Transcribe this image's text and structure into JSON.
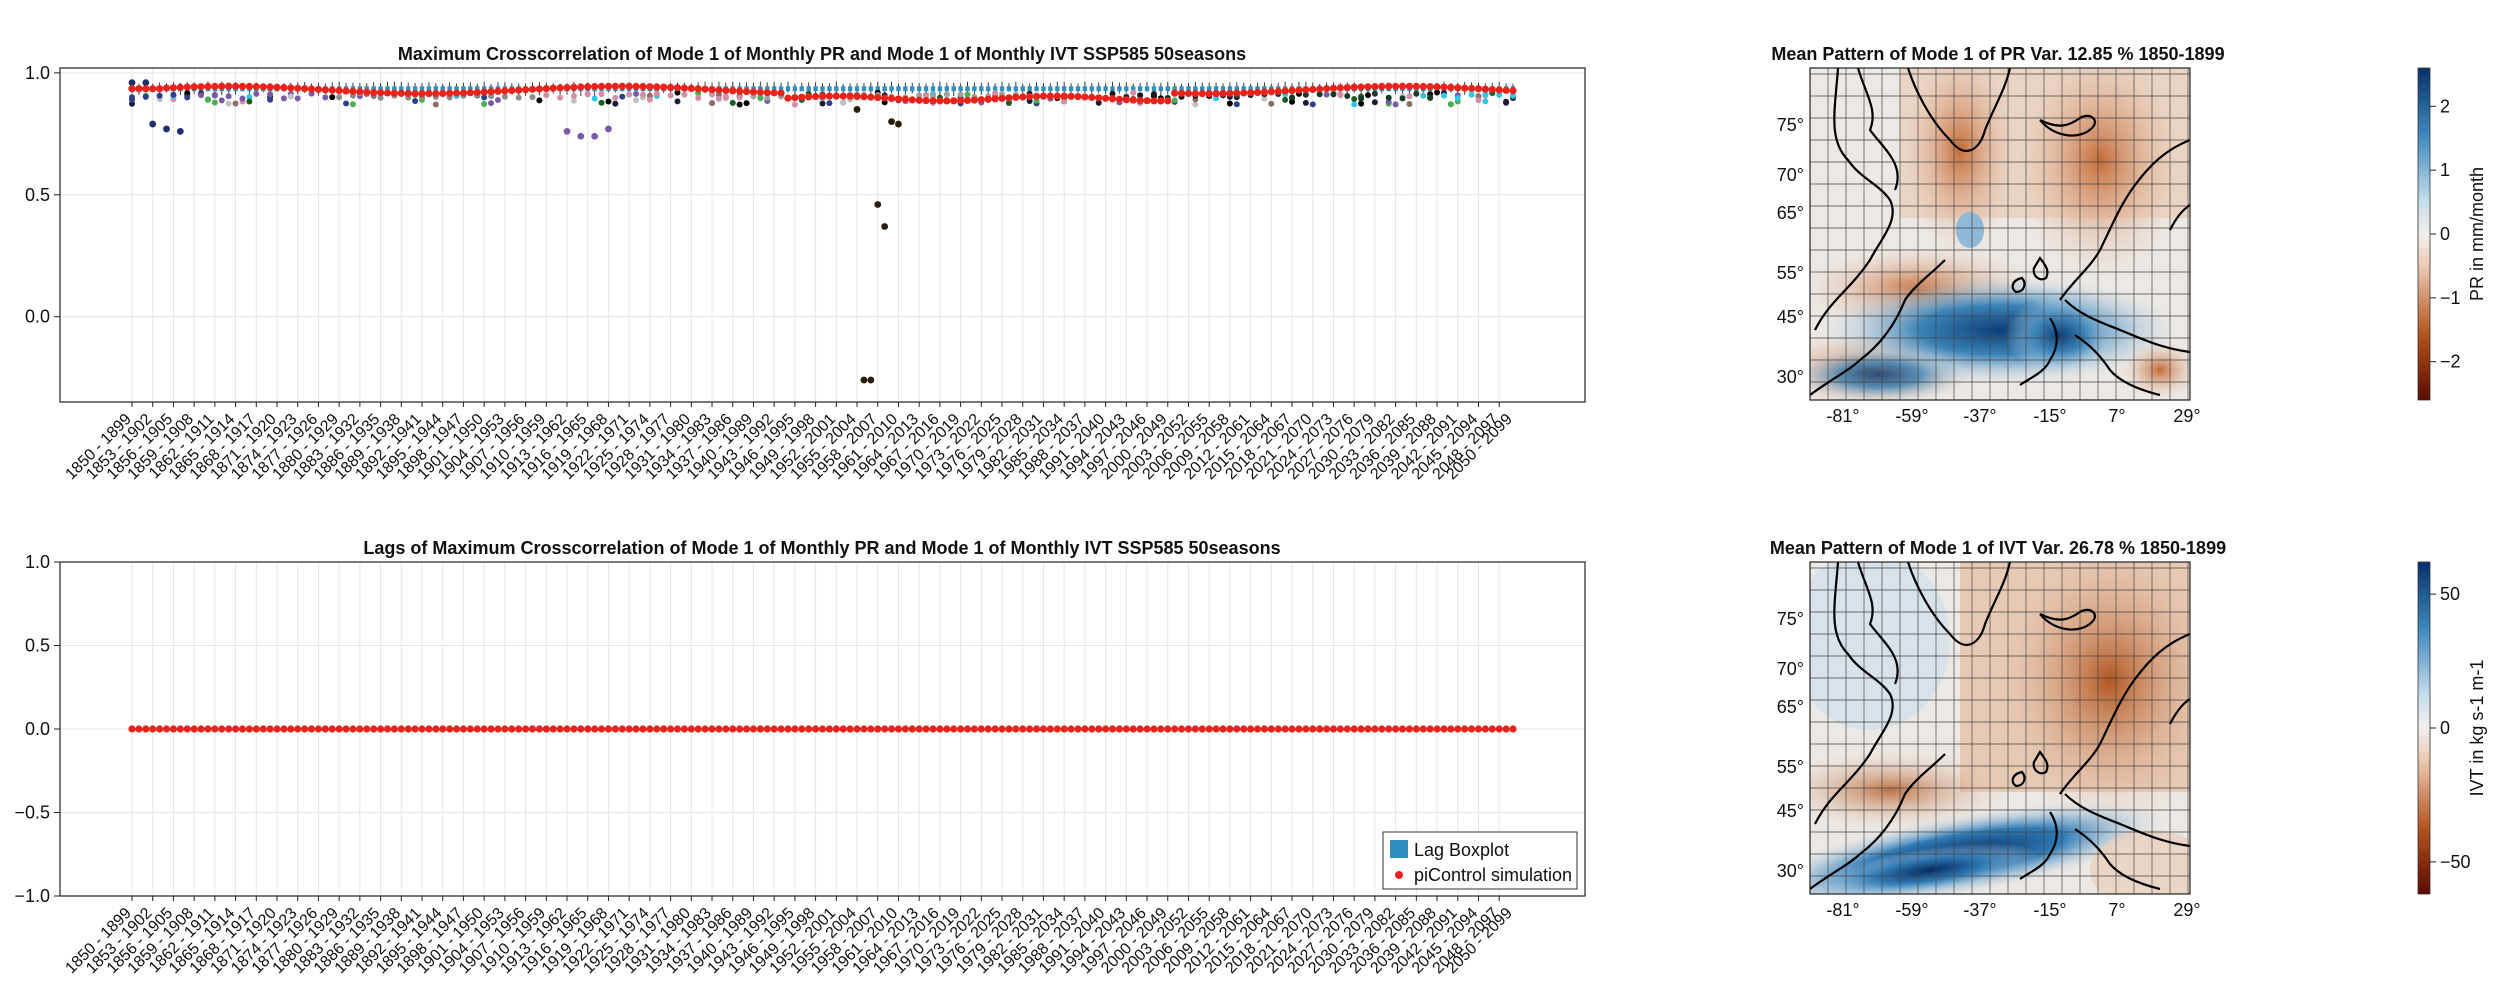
{
  "chart_data": [
    {
      "type": "scatter",
      "title": "Maximum  Crosscorrelation of Monthly PR and Mode 1 of Monthly IVT SSP585 50seasons",
      "title_full": "Maximum  Crosscorrelation of Mode 1 of Monthly PR and Mode 1 of Monthly IVT SSP585 50seasons",
      "ylim": [
        -0.35,
        1.02
      ],
      "yticks": [
        "1.0",
        "0.5",
        "0.0"
      ],
      "ytick_values": [
        1.0,
        0.5,
        0.0
      ],
      "grid": true,
      "x_start_year": 1850,
      "x_end_year": 2050,
      "x_window": 49,
      "x_tick_every": 3,
      "series": [
        {
          "name": "piControl simulation",
          "color": "#e8231c",
          "values_note": "approximately 0.93-0.95 throughout, dipping to ~0.88 around 1950-2000 windows"
        },
        {
          "name": "Lag Boxplot",
          "color": "#2f8fbf"
        }
      ],
      "outliers": [
        {
          "window": "1850 - 1899",
          "value": 0.96
        },
        {
          "window": "1852 - 1901",
          "value": 0.96
        },
        {
          "window": "1853 - 1902",
          "value": 0.79
        },
        {
          "window": "1855 - 1904",
          "value": 0.77
        },
        {
          "window": "1857 - 1906",
          "value": 0.76
        },
        {
          "window": "1913 - 1962",
          "value": 0.76
        },
        {
          "window": "1915 - 1964",
          "value": 0.74
        },
        {
          "window": "1917 - 1966",
          "value": 0.74
        },
        {
          "window": "1919 - 1968",
          "value": 0.77
        },
        {
          "window": "1955 - 2004",
          "value": 0.85
        },
        {
          "window": "1958 - 2007",
          "value": 0.46
        },
        {
          "window": "1959 - 2008",
          "value": 0.37
        },
        {
          "window": "1956 - 2005",
          "value": -0.26
        },
        {
          "window": "1957 - 2006",
          "value": -0.26
        },
        {
          "window": "1960 - 2009",
          "value": 0.8
        },
        {
          "window": "1961 - 2010",
          "value": 0.79
        }
      ]
    },
    {
      "type": "scatter",
      "title": "Lags of Maximum  Crosscorrelation of Mode 1 of Monthly PR and Mode 1 of Monthly IVT SSP585 50seasons",
      "ylim": [
        -1.0,
        1.0
      ],
      "yticks": [
        "1.0",
        "0.5",
        "0.0",
        "−0.5",
        "−1.0"
      ],
      "ytick_values": [
        1.0,
        0.5,
        0.0,
        -0.5,
        -1.0
      ],
      "grid": true,
      "series": [
        {
          "name": "Lag Boxplot",
          "color": "#2f8fbf"
        },
        {
          "name": "piControl simulation",
          "color": "#e8231c",
          "constant_value": 0.0
        }
      ],
      "legend": [
        "Lag Boxplot",
        "piControl simulation"
      ],
      "legend_position": "bottom-right"
    },
    {
      "type": "heatmap",
      "title": "Mean Pattern of Mode 1 of PR Var. 12.85 % 1850-1899",
      "lat_ticks": [
        "75°",
        "70°",
        "65°",
        "55°",
        "45°",
        "30°"
      ],
      "lon_ticks": [
        "-81°",
        "-59°",
        "-37°",
        "-15°",
        "7°",
        "29°"
      ],
      "colorbar_label": "PR in mm/month",
      "colorbar_ticks": [
        "2",
        "1",
        "0",
        "−1",
        "−2"
      ],
      "colorbar_values": [
        2,
        1,
        0,
        -1,
        -2
      ],
      "colorbar_range": [
        -2.6,
        2.6
      ]
    },
    {
      "type": "heatmap",
      "title": "Mean Pattern of Mode 1 of IVT Var. 26.78 % 1850-1899",
      "lat_ticks": [
        "75°",
        "70°",
        "65°",
        "55°",
        "45°",
        "30°"
      ],
      "lon_ticks": [
        "-81°",
        "-59°",
        "-37°",
        "-15°",
        "7°",
        "29°"
      ],
      "colorbar_label": "IVT in kg s-1 m-1",
      "colorbar_ticks": [
        "50",
        "0",
        "−50"
      ],
      "colorbar_values": [
        50,
        0,
        -50
      ],
      "colorbar_range": [
        -62,
        62
      ]
    }
  ]
}
